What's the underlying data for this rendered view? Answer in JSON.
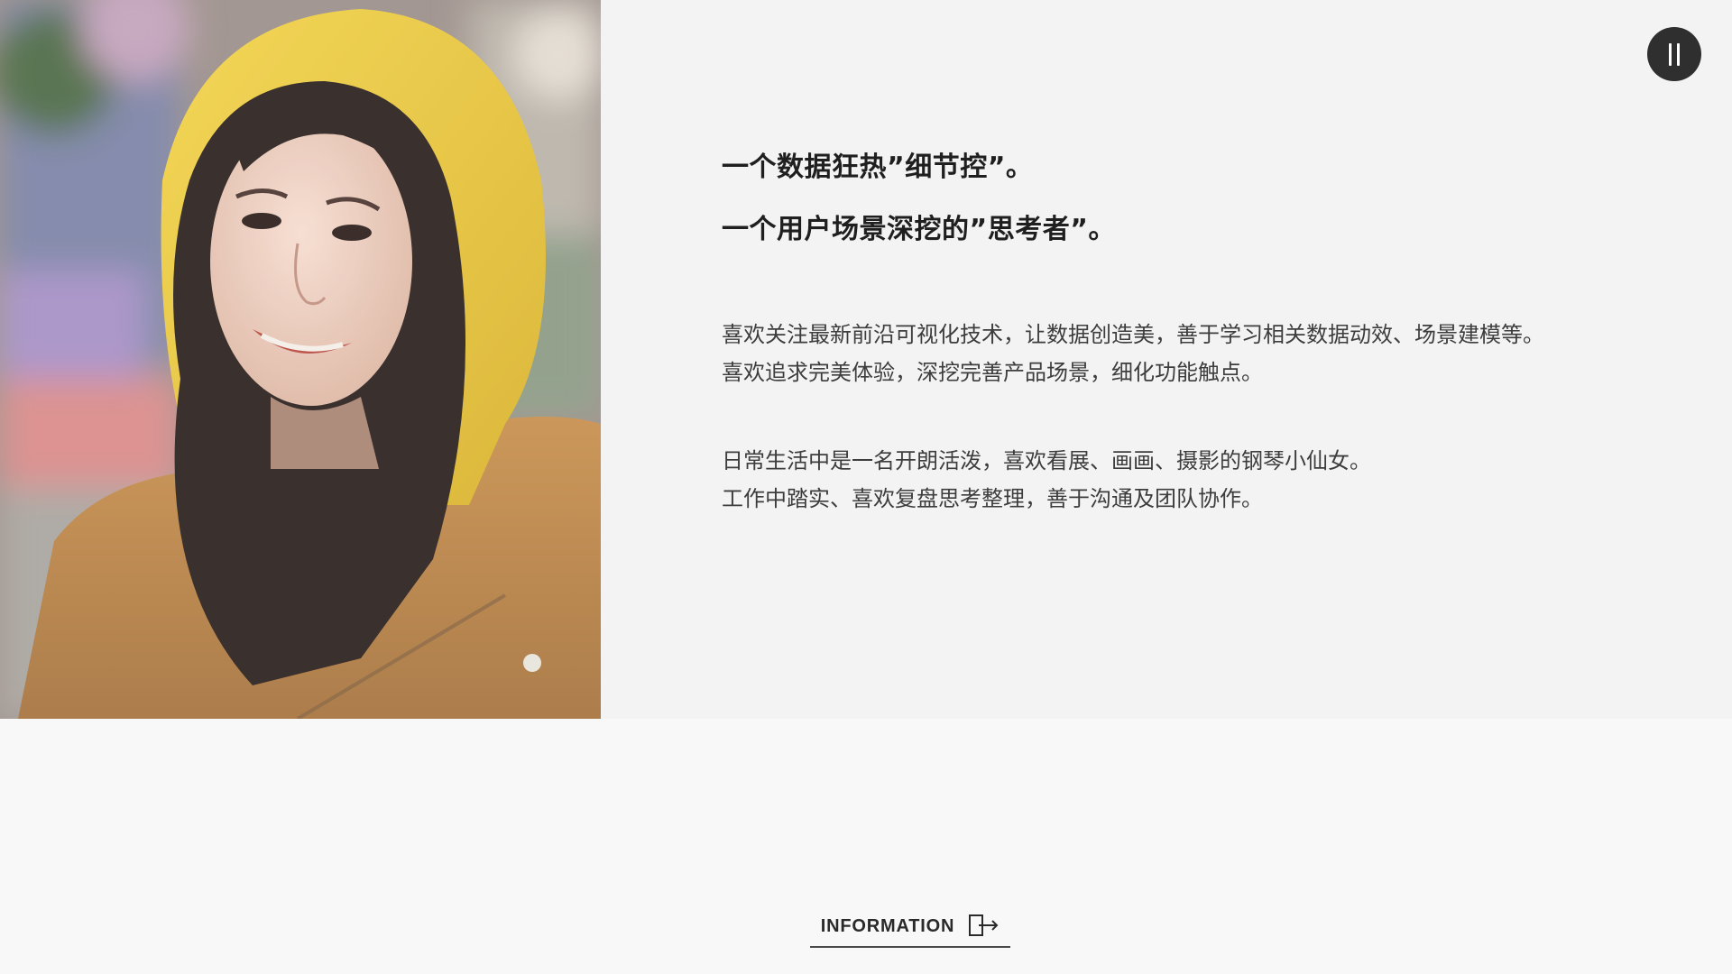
{
  "photo": {
    "alt": "young woman in a yellow hoodie smiling"
  },
  "controls": {
    "pause_icon": "pause-icon"
  },
  "headlines": [
    "一个数据狂热”细节控”。",
    "一个用户场景深挖的”思考者”。"
  ],
  "paragraphs": [
    {
      "lines": [
        "喜欢关注最新前沿可视化技术，让数据创造美，善于学习相关数据动效、场景建模等。",
        "喜欢追求完美体验，深挖完善产品场景，细化功能触点。"
      ]
    },
    {
      "lines": [
        "日常生活中是一名开朗活泼，喜欢看展、画画、摄影的钢琴小仙女。",
        "工作中踏实、喜欢复盘思考整理，善于沟通及团队协作。"
      ]
    }
  ],
  "footer": {
    "info_label": "INFORMATION",
    "info_icon": "exit-arrow-icon"
  },
  "colors": {
    "background": "#f8f8f8",
    "pause_button": "#2f2f2f",
    "hood": "#e9c634",
    "text": "#1f1f1f"
  }
}
